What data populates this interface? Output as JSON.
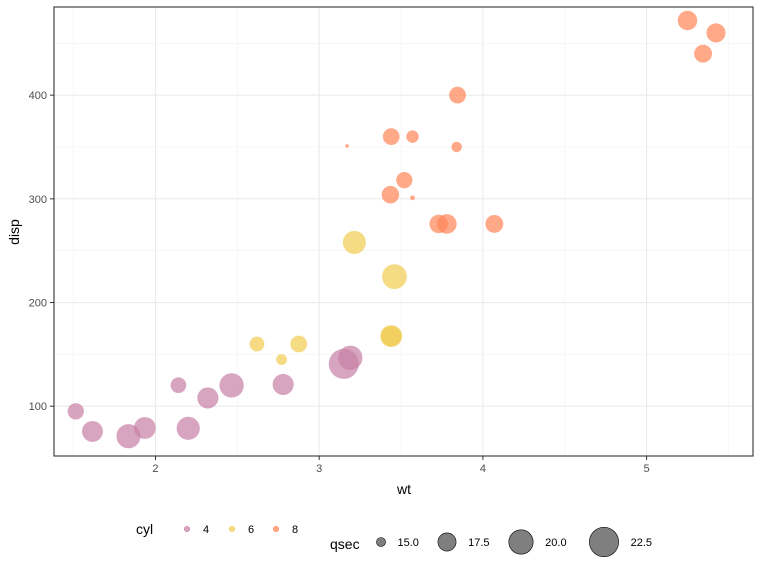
{
  "chart_data": {
    "type": "scatter",
    "xlabel": "wt",
    "ylabel": "disp",
    "xlim": [
      1.38,
      5.65
    ],
    "ylim": [
      52,
      485
    ],
    "x_ticks": [
      2,
      3,
      4,
      5
    ],
    "x_tick_labels": [
      "2",
      "3",
      "4",
      "5"
    ],
    "y_ticks": [
      100,
      200,
      300,
      400
    ],
    "y_tick_labels": [
      "100",
      "200",
      "300",
      "400"
    ],
    "grid": true,
    "legend_placement": "bottom",
    "color_legend": {
      "title": "cyl",
      "entries": [
        {
          "label": "4",
          "color": "#C77FA5"
        },
        {
          "label": "6",
          "color": "#F0CC50"
        },
        {
          "label": "8",
          "color": "#FF8557"
        }
      ]
    },
    "size_legend": {
      "title": "qsec",
      "entries": [
        {
          "label": "15.0",
          "value": 15.0
        },
        {
          "label": "17.5",
          "value": 17.5
        },
        {
          "label": "20.0",
          "value": 20.0
        },
        {
          "label": "22.5",
          "value": 22.5
        }
      ]
    },
    "points": [
      {
        "wt": 2.62,
        "disp": 160.0,
        "cyl": "6",
        "qsec": 16.46
      },
      {
        "wt": 2.875,
        "disp": 160.0,
        "cyl": "6",
        "qsec": 17.02
      },
      {
        "wt": 2.32,
        "disp": 108.0,
        "cyl": "4",
        "qsec": 18.61
      },
      {
        "wt": 3.215,
        "disp": 258.0,
        "cyl": "6",
        "qsec": 19.44
      },
      {
        "wt": 3.44,
        "disp": 360.0,
        "cyl": "8",
        "qsec": 17.02
      },
      {
        "wt": 3.46,
        "disp": 225.0,
        "cyl": "6",
        "qsec": 20.22
      },
      {
        "wt": 3.57,
        "disp": 360.0,
        "cyl": "8",
        "qsec": 15.84
      },
      {
        "wt": 3.19,
        "disp": 146.7,
        "cyl": "4",
        "qsec": 20.0
      },
      {
        "wt": 3.15,
        "disp": 140.8,
        "cyl": "4",
        "qsec": 22.9
      },
      {
        "wt": 3.44,
        "disp": 167.6,
        "cyl": "6",
        "qsec": 18.3
      },
      {
        "wt": 3.44,
        "disp": 167.6,
        "cyl": "6",
        "qsec": 18.9
      },
      {
        "wt": 4.07,
        "disp": 275.8,
        "cyl": "8",
        "qsec": 17.4
      },
      {
        "wt": 3.73,
        "disp": 275.8,
        "cyl": "8",
        "qsec": 17.6
      },
      {
        "wt": 3.78,
        "disp": 275.8,
        "cyl": "8",
        "qsec": 18.0
      },
      {
        "wt": 5.25,
        "disp": 472.0,
        "cyl": "8",
        "qsec": 17.98
      },
      {
        "wt": 5.424,
        "disp": 460.0,
        "cyl": "8",
        "qsec": 17.82
      },
      {
        "wt": 5.345,
        "disp": 440.0,
        "cyl": "8",
        "qsec": 17.42
      },
      {
        "wt": 2.2,
        "disp": 78.7,
        "cyl": "4",
        "qsec": 19.47
      },
      {
        "wt": 1.615,
        "disp": 75.7,
        "cyl": "4",
        "qsec": 18.52
      },
      {
        "wt": 1.835,
        "disp": 71.1,
        "cyl": "4",
        "qsec": 19.9
      },
      {
        "wt": 2.465,
        "disp": 120.1,
        "cyl": "4",
        "qsec": 20.01
      },
      {
        "wt": 3.52,
        "disp": 318.0,
        "cyl": "8",
        "qsec": 16.87
      },
      {
        "wt": 3.435,
        "disp": 304.0,
        "cyl": "8",
        "qsec": 17.3
      },
      {
        "wt": 3.84,
        "disp": 350.0,
        "cyl": "8",
        "qsec": 15.41
      },
      {
        "wt": 3.845,
        "disp": 400.0,
        "cyl": "8",
        "qsec": 17.05
      },
      {
        "wt": 1.935,
        "disp": 79.0,
        "cyl": "4",
        "qsec": 18.9
      },
      {
        "wt": 2.14,
        "disp": 120.3,
        "cyl": "4",
        "qsec": 16.7
      },
      {
        "wt": 1.513,
        "disp": 95.1,
        "cyl": "4",
        "qsec": 16.9
      },
      {
        "wt": 3.17,
        "disp": 351.0,
        "cyl": "8",
        "qsec": 14.5
      },
      {
        "wt": 2.77,
        "disp": 145.0,
        "cyl": "6",
        "qsec": 15.5
      },
      {
        "wt": 3.57,
        "disp": 301.0,
        "cyl": "8",
        "qsec": 14.6
      },
      {
        "wt": 2.78,
        "disp": 121.0,
        "cyl": "4",
        "qsec": 18.6
      }
    ]
  }
}
